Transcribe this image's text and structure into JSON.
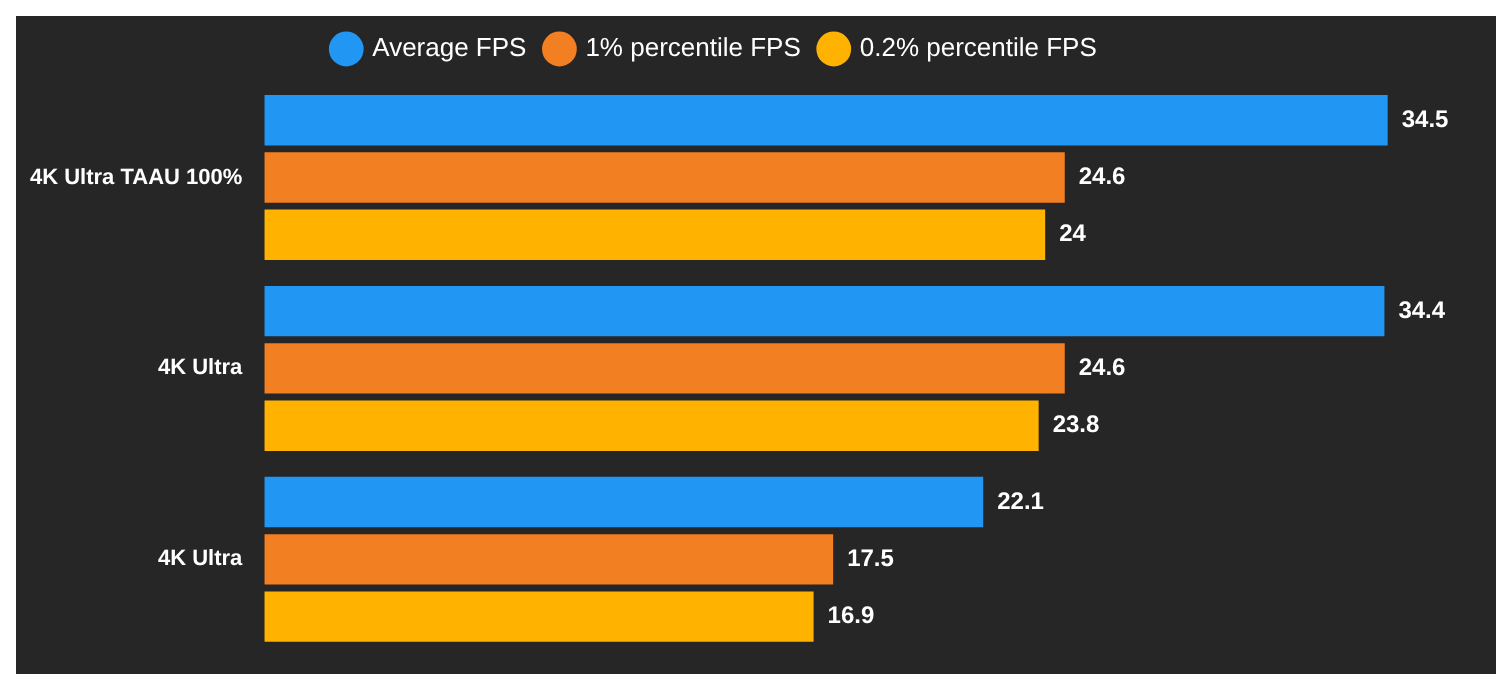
{
  "chart_data": {
    "type": "bar",
    "orientation": "horizontal",
    "categories": [
      "4K Ultra TAAU 100%",
      "4K Ultra",
      "4K Ultra"
    ],
    "series": [
      {
        "name": "Average FPS",
        "color": "#2196f3",
        "values": [
          34.5,
          34.4,
          22.1
        ]
      },
      {
        "name": "1% percentile FPS",
        "color": "#f27f22",
        "values": [
          24.6,
          24.6,
          17.5
        ]
      },
      {
        "name": "0.2% percentile FPS",
        "color": "#ffb300",
        "values": [
          24,
          23.8,
          16.9
        ]
      }
    ],
    "data_labels": true,
    "legend": "top"
  }
}
